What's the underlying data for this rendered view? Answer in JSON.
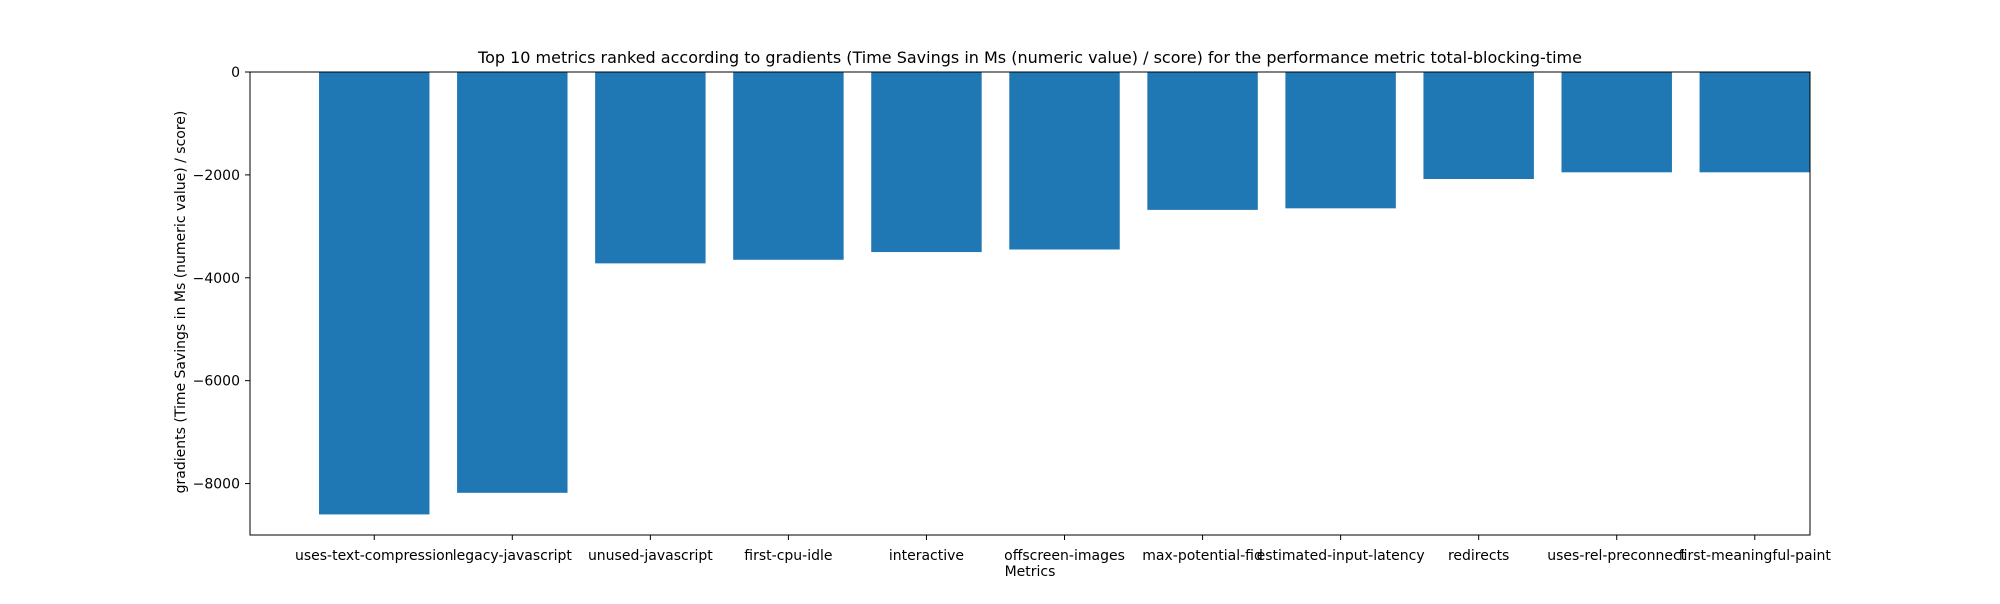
{
  "chart_data": {
    "type": "bar",
    "title": "Top 10 metrics ranked according to gradients (Time Savings in Ms (numeric value) / score) for the performance metric total-blocking-time",
    "xlabel": "Metrics",
    "ylabel": "gradients (Time Savings in Ms (numeric value) / score)",
    "ylim": [
      -9000,
      0
    ],
    "yticks": [
      0,
      -2000,
      -4000,
      -6000,
      -8000
    ],
    "ytick_labels": [
      "0",
      "−2000",
      "−4000",
      "−6000",
      "−8000"
    ],
    "categories": [
      "uses-text-compression",
      "legacy-javascript",
      "unused-javascript",
      "first-cpu-idle",
      "interactive",
      "offscreen-images",
      "max-potential-fid",
      "estimated-input-latency",
      "redirects",
      "uses-rel-preconnect",
      "first-meaningful-paint"
    ],
    "values": [
      -8600,
      -8180,
      -3720,
      -3650,
      -3500,
      -3450,
      -2680,
      -2650,
      -2080,
      -1950,
      -1950
    ],
    "bar_color": "#1f77b4",
    "grid": false,
    "legend": "none"
  }
}
